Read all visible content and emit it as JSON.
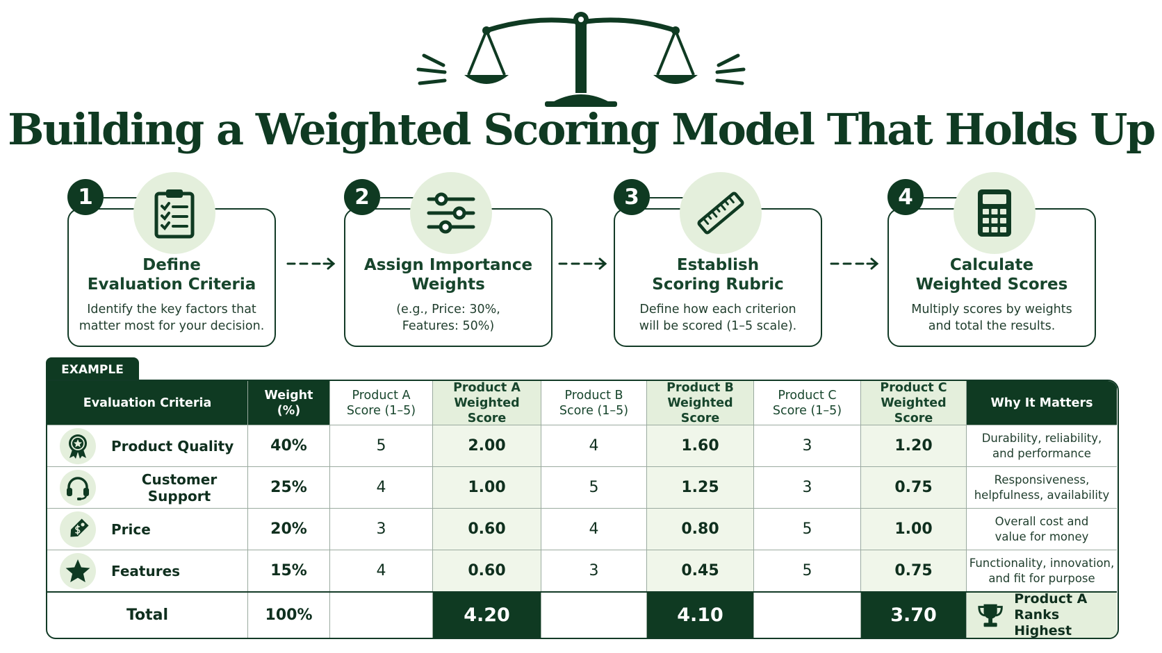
{
  "title": "Building a Weighted Scoring Model That Holds Up",
  "icons": {
    "header": "scale-icon",
    "step1": "clipboard-checklist-icon",
    "step2": "sliders-icon",
    "step3": "ruler-icon",
    "step4": "calculator-icon"
  },
  "colors": {
    "dark_green": "#0f3a22",
    "light_green": "#e4efdc",
    "pale_green": "#f0f6ea"
  },
  "steps": [
    {
      "number": "1",
      "title": "Define\nEvaluation Criteria",
      "description": "Identify the key factors that\nmatter most for your decision."
    },
    {
      "number": "2",
      "title": "Assign Importance\nWeights",
      "description": "(e.g., Price: 30%,\nFeatures: 50%)"
    },
    {
      "number": "3",
      "title": "Establish\nScoring Rubric",
      "description": "Define how each criterion\nwill be scored (1–5 scale)."
    },
    {
      "number": "4",
      "title": "Calculate\nWeighted Scores",
      "description": "Multiply scores by weights\nand total the results."
    }
  ],
  "example_label": "EXAMPLE",
  "table": {
    "headers": [
      "Evaluation Criteria",
      "Weight\n(%)",
      "Product A\nScore (1–5)",
      "Product A\nWeighted Score",
      "Product B\nScore (1–5)",
      "Product B\nWeighted Score",
      "Product C\nScore (1–5)",
      "Product C\nWeighted Score",
      "Why It Matters"
    ],
    "rows": [
      {
        "icon": "award-ribbon-icon",
        "criterion": "Product Quality",
        "weight": "40%",
        "a_score": "5",
        "a_weighted": "2.00",
        "b_score": "4",
        "b_weighted": "1.60",
        "c_score": "3",
        "c_weighted": "1.20",
        "why": "Durability, reliability,\nand performance"
      },
      {
        "icon": "headset-icon",
        "criterion": "Customer Support",
        "weight": "25%",
        "a_score": "4",
        "a_weighted": "1.00",
        "b_score": "5",
        "b_weighted": "1.25",
        "c_score": "3",
        "c_weighted": "0.75",
        "why": "Responsiveness,\nhelpfulness, availability"
      },
      {
        "icon": "price-tag-icon",
        "criterion": "Price",
        "weight": "20%",
        "a_score": "3",
        "a_weighted": "0.60",
        "b_score": "4",
        "b_weighted": "0.80",
        "c_score": "5",
        "c_weighted": "1.00",
        "why": "Overall cost and\nvalue for money"
      },
      {
        "icon": "star-icon",
        "criterion": "Features",
        "weight": "15%",
        "a_score": "4",
        "a_weighted": "0.60",
        "b_score": "3",
        "b_weighted": "0.45",
        "c_score": "5",
        "c_weighted": "0.75",
        "why": "Functionality, innovation,\nand fit for purpose"
      }
    ],
    "total": {
      "label": "Total",
      "weight": "100%",
      "a_weighted": "4.20",
      "b_weighted": "4.10",
      "c_weighted": "3.70",
      "winner_icon": "trophy-icon",
      "winner_text": "Product A\nRanks Highest"
    }
  }
}
